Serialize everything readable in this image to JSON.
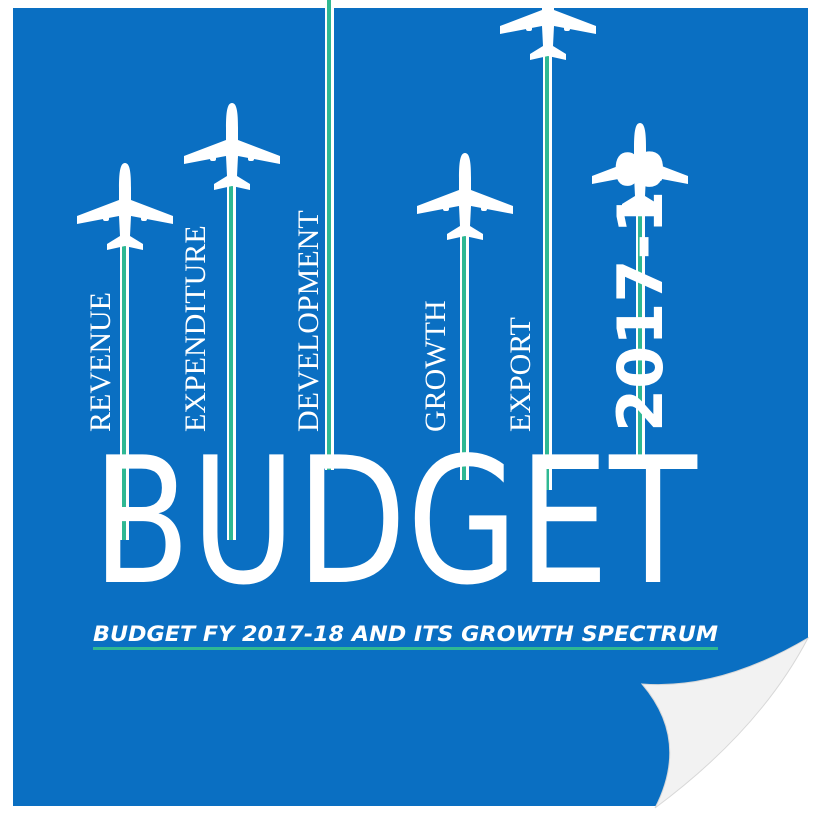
{
  "words": [
    "REVENUE",
    "EXPENDITURE",
    "DEVELOPMENT",
    "GROWTH",
    "EXPORT"
  ],
  "year": "2017-18",
  "headline": "BUDGET",
  "subtitle": "BUDGET FY 2017-18 AND ITS GROWTH SPECTRUM"
}
